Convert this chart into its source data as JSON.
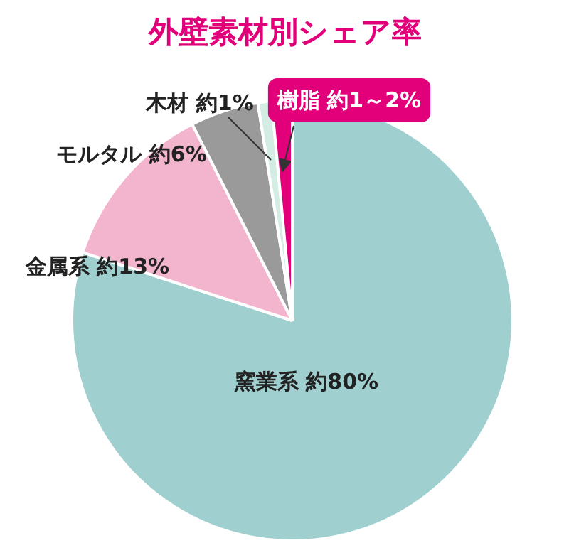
{
  "chart_data": {
    "type": "pie",
    "title": "外壁素材別シェア率",
    "categories": [
      "窯業系",
      "金属系",
      "モルタル",
      "木材",
      "樹脂"
    ],
    "values": [
      80,
      12.5,
      5,
      1,
      1.5
    ],
    "value_labels": [
      "約80%",
      "約13%",
      "約6%",
      "約1%",
      "約1～2%"
    ],
    "colors": [
      "#9fcfcf",
      "#f3b5cd",
      "#9a9a9a",
      "#d3ede5",
      "#e2007a"
    ]
  }
}
